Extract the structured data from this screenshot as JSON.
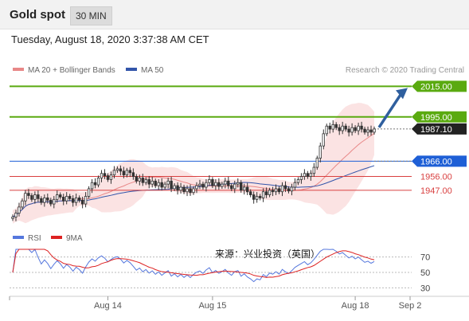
{
  "header": {
    "title": "Gold spot",
    "timeframe": "30 MIN"
  },
  "timestamp": "Tuesday, August 18, 2020 3:37:38 AM CET",
  "copyright": "Research © 2020 Trading Central",
  "watermark": "来源：兴业投资（英国）",
  "colors": {
    "ma20": "#e88888",
    "ma50": "#3355aa",
    "resistance": "#5aaa10",
    "support_blue": "#1e5fd6",
    "support_red": "#d94040",
    "current": "#222222",
    "candle": "#333333",
    "band_fill": "#fbe3e3",
    "rsi": "#5577dd",
    "rsi_ma": "#dd2222",
    "arrow": "#2f5f9e"
  },
  "chart_data": [
    {
      "type": "candlestick",
      "title": "Gold spot",
      "legend": [
        {
          "name": "MA 20 + Bollinger Bands",
          "color": "#e88888"
        },
        {
          "name": "MA 50",
          "color": "#3355aa"
        }
      ],
      "x_ticks": [
        "Aug 14",
        "Aug 15",
        "Aug 18",
        "Sep 2"
      ],
      "ylim": [
        1925,
        2022
      ],
      "levels": [
        {
          "value": 2015.0,
          "label": "2015.00",
          "kind": "target"
        },
        {
          "value": 1995.0,
          "label": "1995.00",
          "kind": "resistance"
        },
        {
          "value": 1987.1,
          "label": "1987.10",
          "kind": "current"
        },
        {
          "value": 1966.0,
          "label": "1966.00",
          "kind": "pivot"
        },
        {
          "value": 1956.0,
          "label": "1956.00",
          "kind": "support"
        },
        {
          "value": 1947.0,
          "label": "1947.00",
          "kind": "support"
        }
      ],
      "closes": [
        1929.5,
        1932,
        1936,
        1940,
        1945,
        1943.5,
        1941,
        1944,
        1941.5,
        1939,
        1942,
        1940.5,
        1938,
        1941,
        1944,
        1942.5,
        1940,
        1943,
        1941.5,
        1939,
        1942,
        1940.5,
        1938,
        1943,
        1948,
        1952,
        1950.5,
        1955,
        1958,
        1956.5,
        1954,
        1957,
        1960,
        1961,
        1959.5,
        1957,
        1960,
        1958.5,
        1956,
        1953,
        1955,
        1952,
        1954,
        1951,
        1953,
        1950,
        1952,
        1949,
        1951,
        1953,
        1948,
        1950,
        1947,
        1949,
        1946,
        1948,
        1945.5,
        1948,
        1950,
        1951,
        1949,
        1952,
        1954,
        1950,
        1952,
        1949.5,
        1951,
        1953,
        1950,
        1948,
        1951,
        1952,
        1947,
        1949,
        1946,
        1944,
        1941,
        1943,
        1942,
        1946,
        1944,
        1947,
        1946,
        1948,
        1946,
        1950,
        1948,
        1946.5,
        1949,
        1952,
        1954,
        1956,
        1958,
        1956,
        1958,
        1962,
        1968,
        1976,
        1984,
        1989,
        1987,
        1990,
        1988,
        1986,
        1989,
        1987,
        1985,
        1988,
        1986,
        1989,
        1987,
        1985,
        1986.5,
        1985,
        1987.1
      ]
    },
    {
      "type": "line",
      "title": "RSI",
      "series": [
        {
          "name": "RSI",
          "color": "#5577dd"
        },
        {
          "name": "9MA",
          "color": "#dd2222"
        }
      ],
      "ylim": [
        20,
        80
      ],
      "y_ticks": [
        70,
        50,
        30
      ]
    }
  ]
}
